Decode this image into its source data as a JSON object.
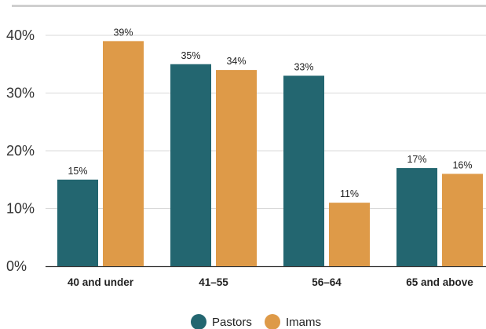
{
  "chart_data": {
    "type": "bar",
    "categories": [
      "40 and under",
      "41–55",
      "56–64",
      "65 and above"
    ],
    "series": [
      {
        "name": "Pastors",
        "values": [
          15,
          35,
          33,
          17
        ],
        "labels": [
          "15%",
          "35%",
          "33%",
          "17%"
        ]
      },
      {
        "name": "Imams",
        "values": [
          39,
          34,
          11,
          16
        ],
        "labels": [
          "39%",
          "34%",
          "11%",
          "16%"
        ]
      }
    ],
    "yticks": [
      "0%",
      "10%",
      "20%",
      "30%",
      "40%"
    ],
    "ylim": [
      0,
      40
    ],
    "grid": true,
    "legend_position": "bottom",
    "colors": {
      "Pastors": "#236670",
      "Imams": "#DE9A48",
      "grid": "#D9D9D9",
      "axis": "#333333"
    }
  }
}
